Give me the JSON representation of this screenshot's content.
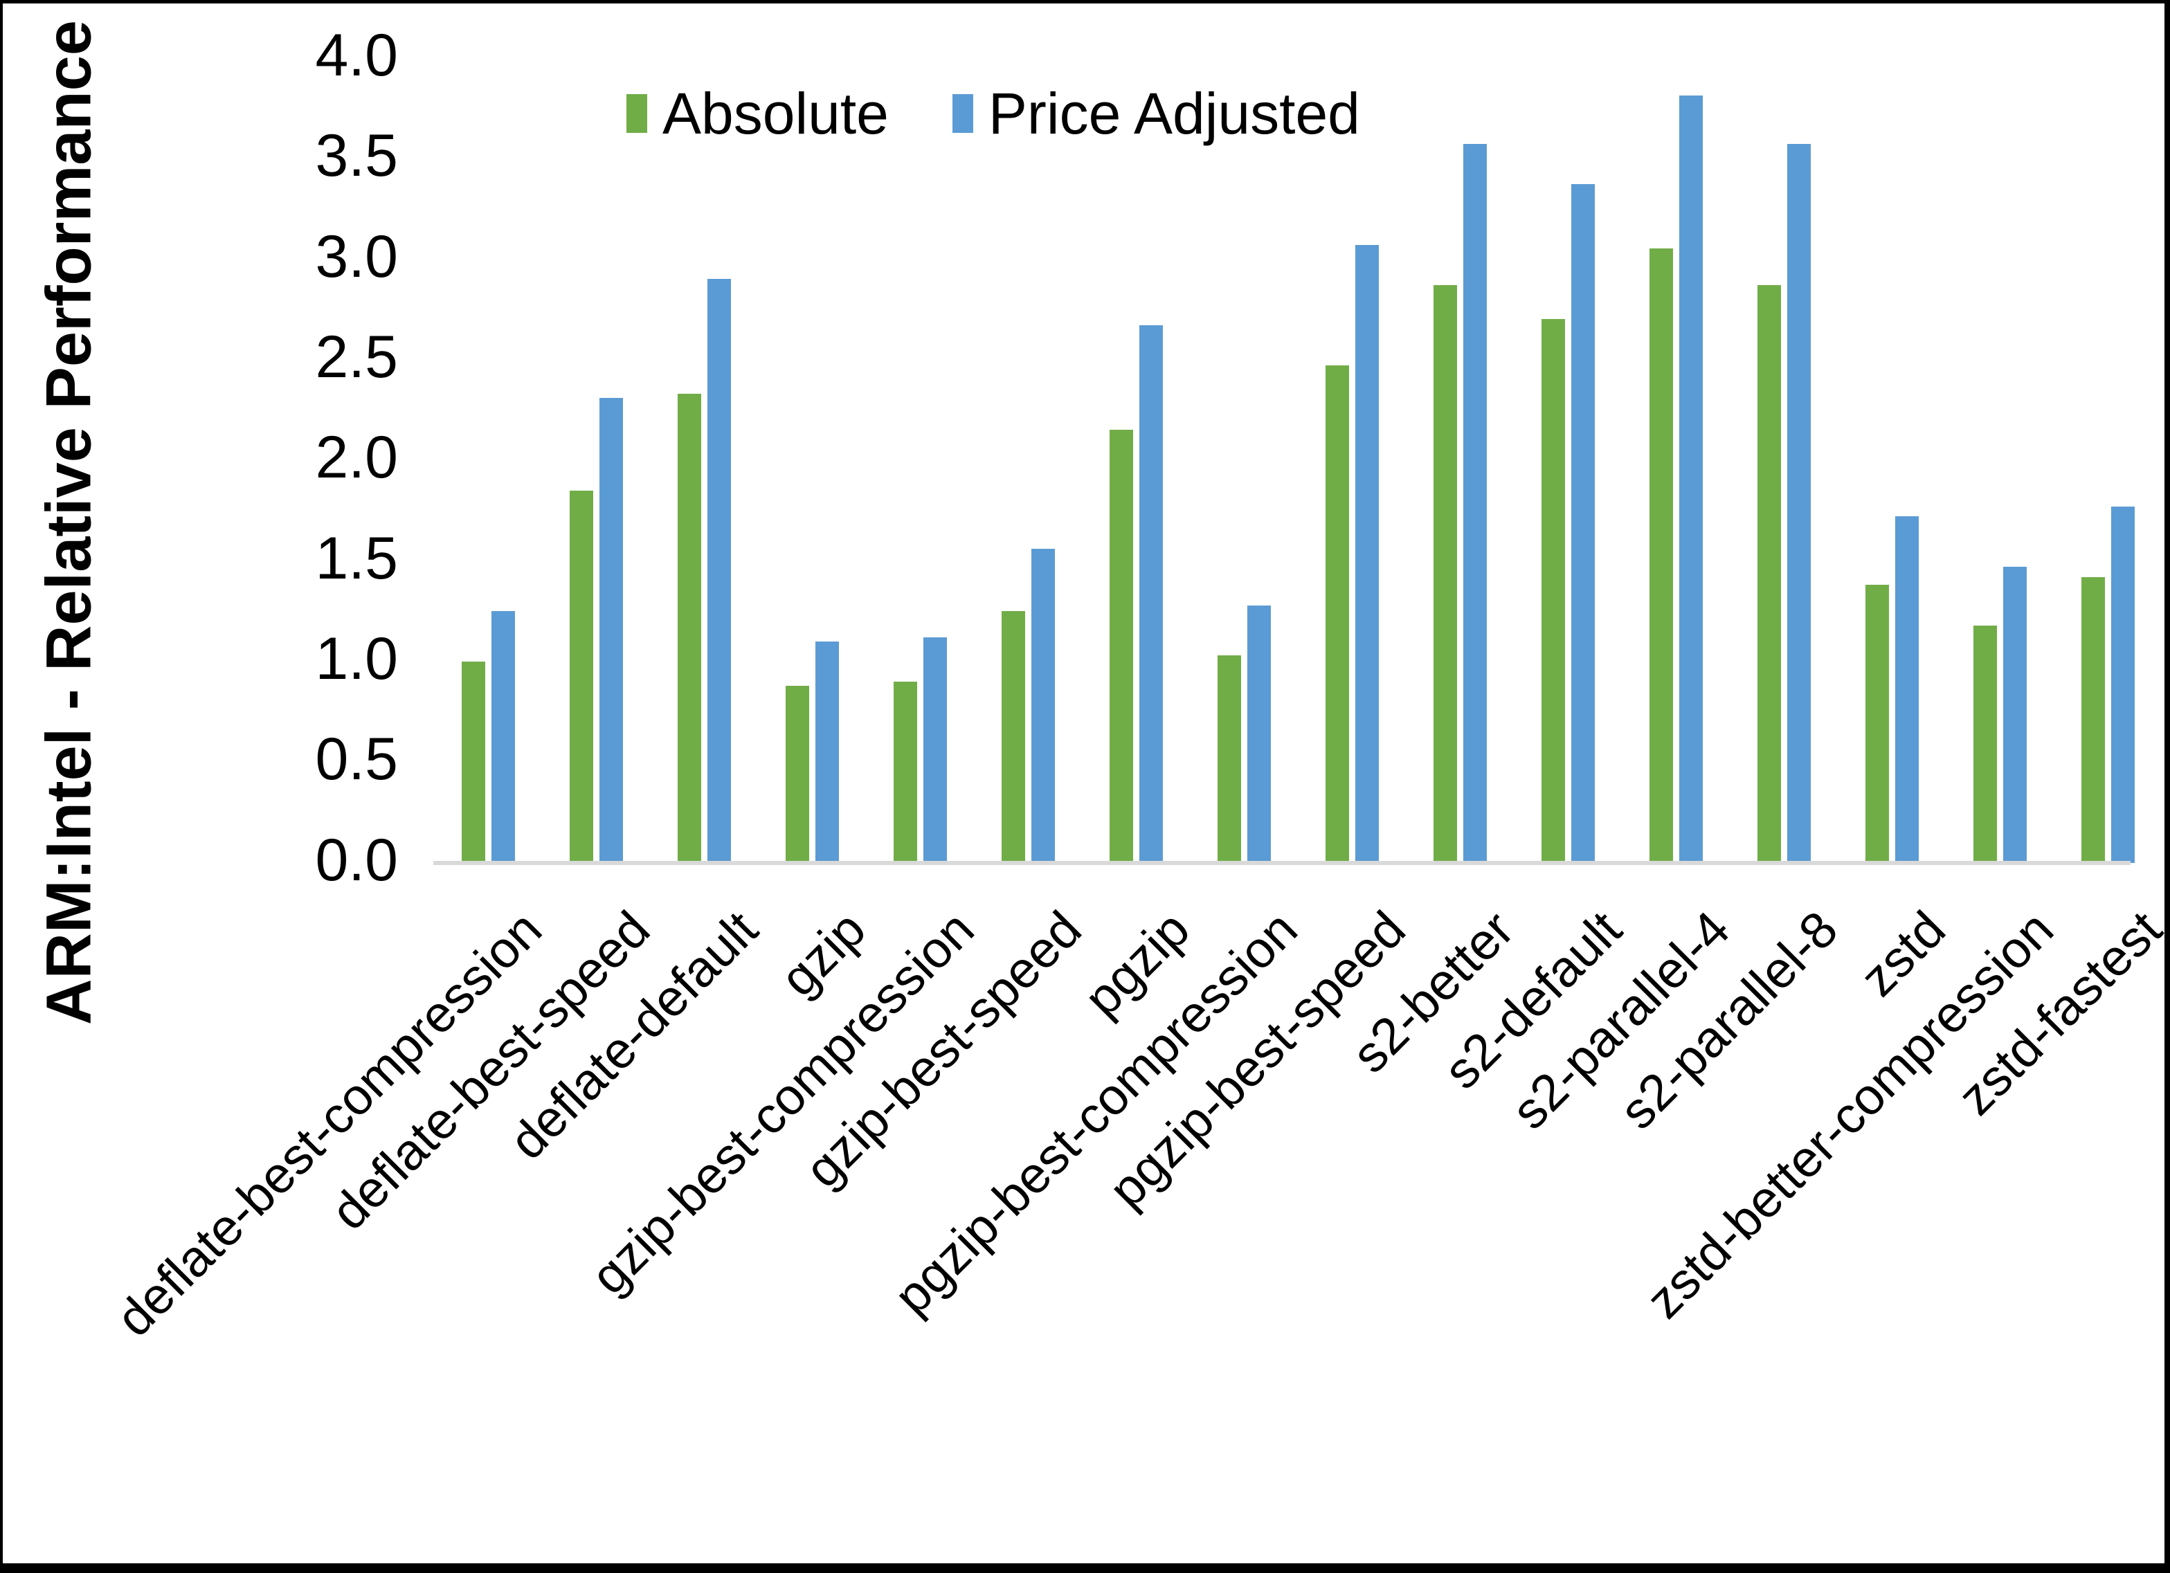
{
  "chart_data": {
    "type": "bar",
    "title": "",
    "ylabel": "ARM:Intel - Relative Performance",
    "xlabel": "",
    "ylim": [
      0.0,
      4.0
    ],
    "ytick_step": 0.5,
    "yticks": [
      "0.0",
      "0.5",
      "1.0",
      "1.5",
      "2.0",
      "2.5",
      "3.0",
      "3.5",
      "4.0"
    ],
    "grid": false,
    "legend_position": "top-center",
    "background_color": "#FFFFFF",
    "axis_line_color": "#D9D9D9",
    "categories": [
      "deflate-best-compression",
      "deflate-best-speed",
      "deflate-default",
      "gzip",
      "gzip-best-compression",
      "gzip-best-speed",
      "pgzip",
      "pgzip-best-compression",
      "pgzip-best-speed",
      "s2-better",
      "s2-default",
      "s2-parallel-4",
      "s2-parallel-8",
      "zstd",
      "zstd-better-compression",
      "zstd-fastest"
    ],
    "series": [
      {
        "name": "Absolute",
        "color": "#70AD47",
        "values": [
          1.0,
          1.85,
          2.33,
          0.88,
          0.9,
          1.25,
          2.15,
          1.03,
          2.47,
          2.87,
          2.7,
          3.05,
          2.87,
          1.38,
          1.18,
          1.42
        ]
      },
      {
        "name": "Price Adjusted",
        "color": "#5B9BD5",
        "values": [
          1.25,
          2.31,
          2.9,
          1.1,
          1.12,
          1.56,
          2.67,
          1.28,
          3.07,
          3.57,
          3.37,
          3.81,
          3.57,
          1.72,
          1.47,
          1.77
        ]
      }
    ]
  }
}
